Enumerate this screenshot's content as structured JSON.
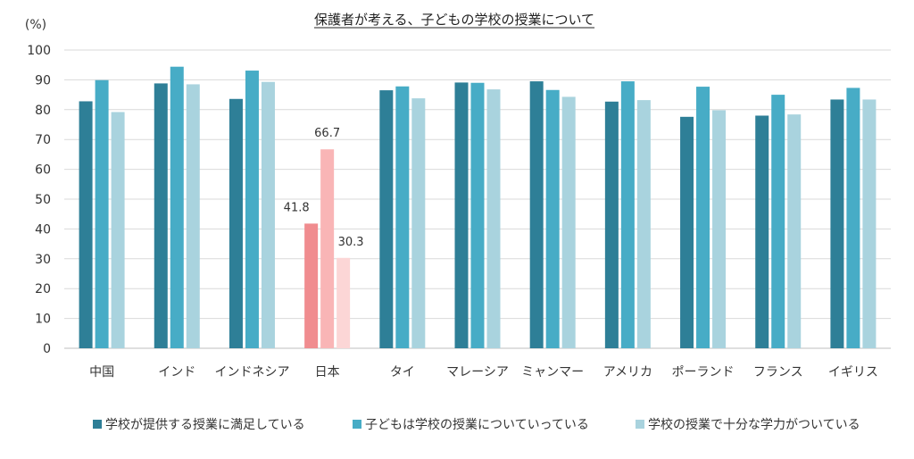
{
  "chart_data": {
    "type": "bar",
    "title": "保護者が考える、子どもの学校の授業について",
    "unit_label": "(%)",
    "ylim": [
      0,
      100
    ],
    "yticks": [
      0,
      10,
      20,
      30,
      40,
      50,
      60,
      70,
      80,
      90,
      100
    ],
    "grid": true,
    "legend_position": "bottom",
    "categories": [
      "中国",
      "インド",
      "インドネシア",
      "日本",
      "タイ",
      "マレーシア",
      "ミャンマー",
      "アメリカ",
      "ポーランド",
      "フランス",
      "イギリス"
    ],
    "series": [
      {
        "name": "学校が提供する授業に満足している",
        "color": "#2e7f97",
        "highlight_color": "#f08c8f",
        "values": [
          82.8,
          88.8,
          83.6,
          41.8,
          86.5,
          89.1,
          89.5,
          82.7,
          77.6,
          78.0,
          83.4
        ]
      },
      {
        "name": "子どもは学校の授業についていっている",
        "color": "#47acc6",
        "highlight_color": "#f9b5b6",
        "values": [
          89.9,
          94.4,
          93.1,
          66.7,
          87.8,
          89.0,
          86.6,
          89.5,
          87.7,
          85.0,
          87.3
        ]
      },
      {
        "name": "学校の授業で十分な学力がついている",
        "color": "#a9d3de",
        "highlight_color": "#fcd6d6",
        "values": [
          79.2,
          88.5,
          89.3,
          30.3,
          83.8,
          86.8,
          84.3,
          83.2,
          79.8,
          78.4,
          83.4
        ]
      }
    ],
    "highlight_category": "日本",
    "data_labels": [
      {
        "category": "日本",
        "series": 0,
        "text": "41.8"
      },
      {
        "category": "日本",
        "series": 1,
        "text": "66.7"
      },
      {
        "category": "日本",
        "series": 2,
        "text": "30.3"
      }
    ]
  }
}
